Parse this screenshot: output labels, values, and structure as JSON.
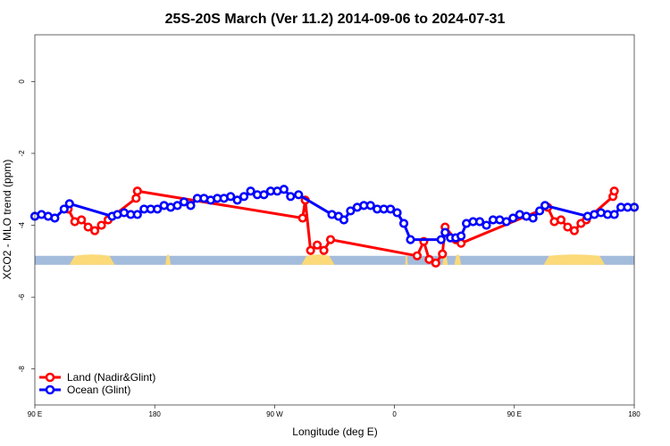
{
  "chart_data": {
    "type": "line",
    "title": "25S-20S March (Ver 11.2)   2014-09-06 to 2024-07-31",
    "xlabel": "Longitude (deg E)",
    "ylabel": "XCO2 - MLO trend (ppm)",
    "xlim": [
      90,
      540
    ],
    "ylim": [
      -9.0,
      1.3
    ],
    "x_ticks": [
      {
        "value": 90,
        "label": "90 E"
      },
      {
        "value": 180,
        "label": "180"
      },
      {
        "value": 270,
        "label": "90 W"
      },
      {
        "value": 360,
        "label": "0"
      },
      {
        "value": 450,
        "label": "90 E"
      },
      {
        "value": 540,
        "label": "180"
      }
    ],
    "y_ticks": [
      {
        "value": 0,
        "label": "0"
      },
      {
        "value": -2,
        "label": "-2"
      },
      {
        "value": -4,
        "label": "-4"
      },
      {
        "value": -6,
        "label": "-6"
      },
      {
        "value": -8,
        "label": "-8"
      }
    ],
    "legend": {
      "position": "bottom-left"
    },
    "grid": false,
    "series": [
      {
        "name": "Land (Nadir&Glint)",
        "color": "#ff0000",
        "points": [
          [
            115,
            -3.55
          ],
          [
            120,
            -3.9
          ],
          [
            125,
            -3.85
          ],
          [
            130,
            -4.05
          ],
          [
            135,
            -4.15
          ],
          [
            140,
            -4.0
          ],
          [
            145,
            -3.85
          ],
          [
            166,
            -3.25
          ],
          [
            167,
            -3.05
          ],
          [
            291,
            -3.8
          ],
          [
            293,
            -3.3
          ],
          [
            297,
            -4.7
          ],
          [
            302,
            -4.55
          ],
          [
            307,
            -4.7
          ],
          [
            312,
            -4.4
          ],
          [
            377,
            -4.85
          ],
          [
            382,
            -4.45
          ],
          [
            386,
            -4.95
          ],
          [
            391,
            -5.05
          ],
          [
            396,
            -4.8
          ],
          [
            398,
            -4.05
          ],
          [
            406,
            -4.4
          ],
          [
            410,
            -4.5
          ],
          [
            475,
            -3.5
          ],
          [
            480,
            -3.9
          ],
          [
            485,
            -3.85
          ],
          [
            490,
            -4.05
          ],
          [
            495,
            -4.15
          ],
          [
            500,
            -3.95
          ],
          [
            504,
            -3.85
          ],
          [
            524,
            -3.2
          ],
          [
            525,
            -3.05
          ]
        ]
      },
      {
        "name": "Ocean (Glint)",
        "color": "#0000ff",
        "points": [
          [
            90,
            -3.75
          ],
          [
            95,
            -3.7
          ],
          [
            100,
            -3.75
          ],
          [
            105,
            -3.8
          ],
          [
            112,
            -3.55
          ],
          [
            116,
            -3.4
          ],
          [
            148,
            -3.75
          ],
          [
            152,
            -3.7
          ],
          [
            157,
            -3.65
          ],
          [
            162,
            -3.7
          ],
          [
            167,
            -3.7
          ],
          [
            172,
            -3.55
          ],
          [
            177,
            -3.55
          ],
          [
            182,
            -3.55
          ],
          [
            187,
            -3.45
          ],
          [
            192,
            -3.5
          ],
          [
            197,
            -3.45
          ],
          [
            202,
            -3.35
          ],
          [
            207,
            -3.45
          ],
          [
            212,
            -3.25
          ],
          [
            217,
            -3.25
          ],
          [
            222,
            -3.3
          ],
          [
            227,
            -3.25
          ],
          [
            232,
            -3.25
          ],
          [
            237,
            -3.2
          ],
          [
            242,
            -3.3
          ],
          [
            247,
            -3.2
          ],
          [
            252,
            -3.05
          ],
          [
            257,
            -3.15
          ],
          [
            262,
            -3.15
          ],
          [
            267,
            -3.05
          ],
          [
            272,
            -3.05
          ],
          [
            277,
            -3.0
          ],
          [
            282,
            -3.2
          ],
          [
            288,
            -3.15
          ],
          [
            313,
            -3.7
          ],
          [
            318,
            -3.75
          ],
          [
            322,
            -3.85
          ],
          [
            327,
            -3.6
          ],
          [
            332,
            -3.5
          ],
          [
            337,
            -3.45
          ],
          [
            342,
            -3.45
          ],
          [
            347,
            -3.55
          ],
          [
            352,
            -3.55
          ],
          [
            357,
            -3.55
          ],
          [
            362,
            -3.65
          ],
          [
            367,
            -3.95
          ],
          [
            372,
            -4.4
          ],
          [
            395,
            -4.4
          ],
          [
            398,
            -4.2
          ],
          [
            402,
            -4.35
          ],
          [
            406,
            -4.35
          ],
          [
            410,
            -4.3
          ],
          [
            414,
            -3.95
          ],
          [
            419,
            -3.9
          ],
          [
            424,
            -3.9
          ],
          [
            429,
            -4.0
          ],
          [
            434,
            -3.85
          ],
          [
            439,
            -3.85
          ],
          [
            444,
            -3.9
          ],
          [
            449,
            -3.8
          ],
          [
            454,
            -3.7
          ],
          [
            459,
            -3.75
          ],
          [
            464,
            -3.8
          ],
          [
            469,
            -3.6
          ],
          [
            473,
            -3.45
          ],
          [
            505,
            -3.75
          ],
          [
            510,
            -3.7
          ],
          [
            515,
            -3.65
          ],
          [
            520,
            -3.7
          ],
          [
            525,
            -3.7
          ],
          [
            530,
            -3.5
          ],
          [
            535,
            -3.5
          ],
          [
            540,
            -3.5
          ]
        ]
      }
    ],
    "background_band": {
      "y_range": [
        -5.1,
        -4.85
      ],
      "ocean_color": "#a4bcdc",
      "land_color": "#fcda7a",
      "land_segments": [
        [
          116,
          150
        ],
        [
          188,
          192
        ],
        [
          290,
          315
        ],
        [
          368,
          370
        ],
        [
          396,
          400
        ],
        [
          405,
          410
        ],
        [
          472,
          518
        ]
      ]
    }
  }
}
